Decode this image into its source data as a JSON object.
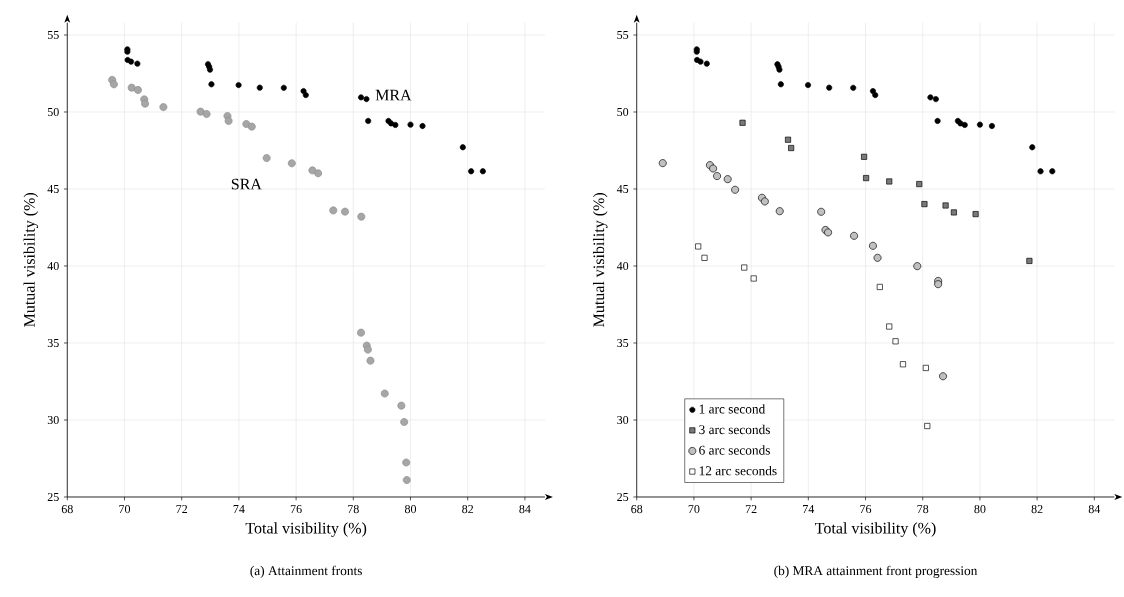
{
  "chart_data": [
    {
      "type": "scatter",
      "xlabel": "Total visibility (%)",
      "ylabel": "Mutual visibility (%)",
      "annotations": [
        "(a) Attainment fronts"
      ],
      "xlim": [
        68,
        84.7
      ],
      "ylim": [
        25,
        55.8
      ],
      "xticks": [
        68,
        70,
        72,
        74,
        76,
        78,
        80,
        82,
        84
      ],
      "yticks": [
        25,
        30,
        35,
        40,
        45,
        50,
        55
      ],
      "grid": true,
      "legend": false,
      "series": [
        {
          "name": "MRA",
          "color": "#000000",
          "marker": "circle",
          "x": [
            70.1,
            70.1,
            70.11,
            70.23,
            70.45,
            72.92,
            72.96,
            72.99,
            73.04,
            73.99,
            74.73,
            75.57,
            76.26,
            76.34,
            78.27,
            78.46,
            78.52,
            79.23,
            79.32,
            79.47,
            80.0,
            80.42,
            81.83,
            82.12,
            82.53
          ],
          "values": [
            54.07,
            53.92,
            53.38,
            53.27,
            53.14,
            53.1,
            52.94,
            52.75,
            51.8,
            51.75,
            51.58,
            51.57,
            51.36,
            51.1,
            50.95,
            50.84,
            49.42,
            49.42,
            49.26,
            49.16,
            49.18,
            49.09,
            47.71,
            46.15,
            46.15
          ]
        },
        {
          "name": "SRA",
          "color": "#a6a6a6",
          "marker": "circle",
          "x": [
            69.57,
            69.63,
            70.25,
            70.47,
            70.69,
            70.72,
            71.36,
            72.66,
            72.87,
            73.6,
            73.64,
            74.26,
            74.45,
            74.97,
            75.85,
            76.57,
            76.77,
            77.3,
            77.71,
            78.28,
            78.27,
            78.47,
            78.51,
            78.6,
            79.1,
            79.68,
            79.78,
            79.85,
            79.87
          ],
          "values": [
            52.08,
            51.8,
            51.58,
            51.43,
            50.82,
            50.54,
            50.32,
            50.02,
            49.87,
            49.74,
            49.42,
            49.22,
            49.05,
            47.01,
            46.67,
            46.21,
            46.02,
            43.61,
            43.53,
            43.2,
            35.67,
            34.83,
            34.57,
            33.85,
            31.72,
            30.93,
            29.87,
            27.24,
            26.1
          ]
        }
      ]
    },
    {
      "type": "scatter",
      "xlabel": "Total visibility (%)",
      "ylabel": "Mutual visibility (%)",
      "annotations": [
        "(b) MRA attainment front progression"
      ],
      "xlim": [
        68,
        84.7
      ],
      "ylim": [
        25,
        55.8
      ],
      "xticks": [
        68,
        70,
        72,
        74,
        76,
        78,
        80,
        82,
        84
      ],
      "yticks": [
        25,
        30,
        35,
        40,
        45,
        50,
        55
      ],
      "grid": true,
      "legend": "bottom left",
      "series": [
        {
          "name": "1 arc second",
          "color": "#000000",
          "marker": "circle",
          "x": [
            70.1,
            70.1,
            70.11,
            70.23,
            70.45,
            72.92,
            72.96,
            72.99,
            73.04,
            73.99,
            74.73,
            75.57,
            76.26,
            76.34,
            78.27,
            78.46,
            78.52,
            79.23,
            79.32,
            79.47,
            80.0,
            80.42,
            81.83,
            82.12,
            82.53
          ],
          "values": [
            54.07,
            53.92,
            53.38,
            53.27,
            53.14,
            53.1,
            52.94,
            52.75,
            51.8,
            51.75,
            51.58,
            51.57,
            51.36,
            51.1,
            50.95,
            50.84,
            49.42,
            49.42,
            49.26,
            49.16,
            49.18,
            49.09,
            47.71,
            46.15,
            46.15
          ]
        },
        {
          "name": "3 arc seconds",
          "color": "#7a7a7a",
          "marker": "square",
          "x": [
            71.7,
            73.29,
            73.4,
            75.95,
            76.02,
            76.83,
            77.88,
            78.06,
            78.8,
            79.09,
            79.85,
            81.73
          ],
          "values": [
            49.3,
            48.2,
            47.66,
            47.09,
            45.71,
            45.49,
            45.32,
            44.02,
            43.93,
            43.48,
            43.37,
            40.33
          ]
        },
        {
          "name": "6 arc seconds",
          "color": "#c0c0c0",
          "marker": "circle",
          "x": [
            68.91,
            70.56,
            70.67,
            70.81,
            71.18,
            71.44,
            72.38,
            72.48,
            73.0,
            74.45,
            74.6,
            74.69,
            75.6,
            76.26,
            76.42,
            77.81,
            78.54,
            78.54,
            78.71
          ],
          "values": [
            46.68,
            46.55,
            46.33,
            45.84,
            45.64,
            44.95,
            44.43,
            44.19,
            43.56,
            43.52,
            42.34,
            42.18,
            41.96,
            41.31,
            40.53,
            39.99,
            39.03,
            38.82,
            32.84
          ]
        },
        {
          "name": "12 arc seconds",
          "color": "#ffffff",
          "marker": "square",
          "x": [
            70.15,
            70.37,
            71.76,
            72.09,
            76.5,
            76.83,
            77.05,
            77.31,
            78.11,
            78.16
          ],
          "values": [
            41.27,
            40.53,
            39.9,
            39.19,
            38.64,
            36.07,
            35.11,
            33.62,
            33.38,
            29.61
          ]
        }
      ]
    }
  ]
}
